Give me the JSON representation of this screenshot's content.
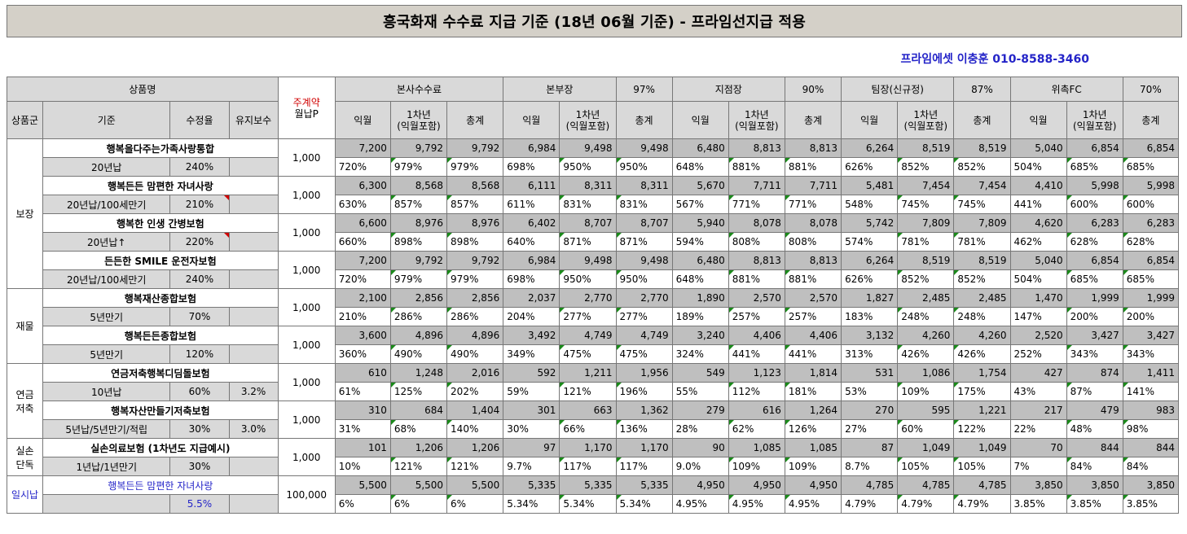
{
  "title": "흥국화재 수수료 지급 기준 (18년 06월 기준) - 프라임선지급 적용",
  "contact": "프라임에셋 이충훈 010-8588-3460",
  "header": {
    "product_label": "상품명",
    "ju_top": "주계약",
    "ju_bottom": "월납P",
    "group_col": "상품군",
    "criteria_col": "기준",
    "rate_col": "수정율",
    "keep_col": "유지보수",
    "sections": [
      {
        "name": "본사수수료",
        "pct": ""
      },
      {
        "name": "본부장",
        "pct": "97%"
      },
      {
        "name": "지점장",
        "pct": "90%"
      },
      {
        "name": "팀장(신규정)",
        "pct": "87%"
      },
      {
        "name": "위촉FC",
        "pct": "70%"
      }
    ],
    "sub_cols": [
      "익월",
      "1차년\n(익월포함)",
      "총계"
    ]
  },
  "groups": [
    {
      "name": "보장",
      "products": [
        {
          "name": "행복을다주는가족사랑통합",
          "criteria": "20년납",
          "rate": "240%",
          "keep": "",
          "premium": "1,000",
          "amounts": [
            "7,200",
            "9,792",
            "9,792",
            "6,984",
            "9,498",
            "9,498",
            "6,480",
            "8,813",
            "8,813",
            "6,264",
            "8,519",
            "8,519",
            "5,040",
            "6,854",
            "6,854"
          ],
          "pcts": [
            "720%",
            "979%",
            "979%",
            "698%",
            "950%",
            "950%",
            "648%",
            "881%",
            "881%",
            "626%",
            "852%",
            "852%",
            "504%",
            "685%",
            "685%"
          ]
        },
        {
          "name": "행복든든 맘편한 자녀사랑",
          "criteria": "20년납/100세만기",
          "rate": "210%",
          "keep": "",
          "premium": "1,000",
          "amounts": [
            "6,300",
            "8,568",
            "8,568",
            "6,111",
            "8,311",
            "8,311",
            "5,670",
            "7,711",
            "7,711",
            "5,481",
            "7,454",
            "7,454",
            "4,410",
            "5,998",
            "5,998"
          ],
          "pcts": [
            "630%",
            "857%",
            "857%",
            "611%",
            "831%",
            "831%",
            "567%",
            "771%",
            "771%",
            "548%",
            "745%",
            "745%",
            "441%",
            "600%",
            "600%"
          ]
        },
        {
          "name": "행복한 인생 간병보험",
          "criteria": "20년납↑",
          "rate": "220%",
          "keep": "",
          "premium": "1,000",
          "amounts": [
            "6,600",
            "8,976",
            "8,976",
            "6,402",
            "8,707",
            "8,707",
            "5,940",
            "8,078",
            "8,078",
            "5,742",
            "7,809",
            "7,809",
            "4,620",
            "6,283",
            "6,283"
          ],
          "pcts": [
            "660%",
            "898%",
            "898%",
            "640%",
            "871%",
            "871%",
            "594%",
            "808%",
            "808%",
            "574%",
            "781%",
            "781%",
            "462%",
            "628%",
            "628%"
          ]
        },
        {
          "name": "든든한 SMILE 운전자보험",
          "criteria": "20년납/100세만기",
          "rate": "240%",
          "keep": "",
          "premium": "1,000",
          "amounts": [
            "7,200",
            "9,792",
            "9,792",
            "6,984",
            "9,498",
            "9,498",
            "6,480",
            "8,813",
            "8,813",
            "6,264",
            "8,519",
            "8,519",
            "5,040",
            "6,854",
            "6,854"
          ],
          "pcts": [
            "720%",
            "979%",
            "979%",
            "698%",
            "950%",
            "950%",
            "648%",
            "881%",
            "881%",
            "626%",
            "852%",
            "852%",
            "504%",
            "685%",
            "685%"
          ]
        }
      ]
    },
    {
      "name": "재물",
      "products": [
        {
          "name": "행복재산종합보험",
          "criteria": "5년만기",
          "rate": "70%",
          "keep": "",
          "premium": "1,000",
          "amounts": [
            "2,100",
            "2,856",
            "2,856",
            "2,037",
            "2,770",
            "2,770",
            "1,890",
            "2,570",
            "2,570",
            "1,827",
            "2,485",
            "2,485",
            "1,470",
            "1,999",
            "1,999"
          ],
          "pcts": [
            "210%",
            "286%",
            "286%",
            "204%",
            "277%",
            "277%",
            "189%",
            "257%",
            "257%",
            "183%",
            "248%",
            "248%",
            "147%",
            "200%",
            "200%"
          ]
        },
        {
          "name": "행복든든종합보험",
          "criteria": "5년만기",
          "rate": "120%",
          "keep": "",
          "premium": "1,000",
          "amounts": [
            "3,600",
            "4,896",
            "4,896",
            "3,492",
            "4,749",
            "4,749",
            "3,240",
            "4,406",
            "4,406",
            "3,132",
            "4,260",
            "4,260",
            "2,520",
            "3,427",
            "3,427"
          ],
          "pcts": [
            "360%",
            "490%",
            "490%",
            "349%",
            "475%",
            "475%",
            "324%",
            "441%",
            "441%",
            "313%",
            "426%",
            "426%",
            "252%",
            "343%",
            "343%"
          ]
        }
      ]
    },
    {
      "name": "연금\n저축",
      "products": [
        {
          "name": "연금저축행복디딤돌보험",
          "criteria": "10년납",
          "rate": "60%",
          "keep": "3.2%",
          "premium": "1,000",
          "amounts": [
            "610",
            "1,248",
            "2,016",
            "592",
            "1,211",
            "1,956",
            "549",
            "1,123",
            "1,814",
            "531",
            "1,086",
            "1,754",
            "427",
            "874",
            "1,411"
          ],
          "pcts": [
            "61%",
            "125%",
            "202%",
            "59%",
            "121%",
            "196%",
            "55%",
            "112%",
            "181%",
            "53%",
            "109%",
            "175%",
            "43%",
            "87%",
            "141%"
          ]
        },
        {
          "name": "행복자산만들기저축보험",
          "criteria": "5년납/5년만기/적립",
          "rate": "30%",
          "keep": "3.0%",
          "premium": "1,000",
          "amounts": [
            "310",
            "684",
            "1,404",
            "301",
            "663",
            "1,362",
            "279",
            "616",
            "1,264",
            "270",
            "595",
            "1,221",
            "217",
            "479",
            "983"
          ],
          "pcts": [
            "31%",
            "68%",
            "140%",
            "30%",
            "66%",
            "136%",
            "28%",
            "62%",
            "126%",
            "27%",
            "60%",
            "122%",
            "22%",
            "48%",
            "98%"
          ]
        }
      ]
    },
    {
      "name": "실손\n단독",
      "products": [
        {
          "name": "실손의료보험 (1차년도 지급예시)",
          "criteria": "1년납/1년만기",
          "rate": "30%",
          "keep": "",
          "premium": "1,000",
          "amounts": [
            "101",
            "1,206",
            "1,206",
            "97",
            "1,170",
            "1,170",
            "90",
            "1,085",
            "1,085",
            "87",
            "1,049",
            "1,049",
            "70",
            "844",
            "844"
          ],
          "pcts": [
            "10%",
            "121%",
            "121%",
            "9.7%",
            "117%",
            "117%",
            "9.0%",
            "109%",
            "109%",
            "8.7%",
            "105%",
            "105%",
            "7%",
            "84%",
            "84%"
          ]
        }
      ]
    },
    {
      "name": "일시납",
      "products": [
        {
          "name": "행복든든 맘편한 자녀사랑",
          "criteria": "",
          "rate": "5.5%",
          "keep": "",
          "premium": "100,000",
          "amounts": [
            "5,500",
            "5,500",
            "5,500",
            "5,335",
            "5,335",
            "5,335",
            "4,950",
            "4,950",
            "4,950",
            "4,785",
            "4,785",
            "4,785",
            "3,850",
            "3,850",
            "3,850"
          ],
          "pcts": [
            "6%",
            "6%",
            "6%",
            "5.34%",
            "5.34%",
            "5.34%",
            "4.95%",
            "4.95%",
            "4.95%",
            "4.79%",
            "4.79%",
            "4.79%",
            "3.85%",
            "3.85%",
            "3.85%"
          ]
        }
      ]
    }
  ]
}
